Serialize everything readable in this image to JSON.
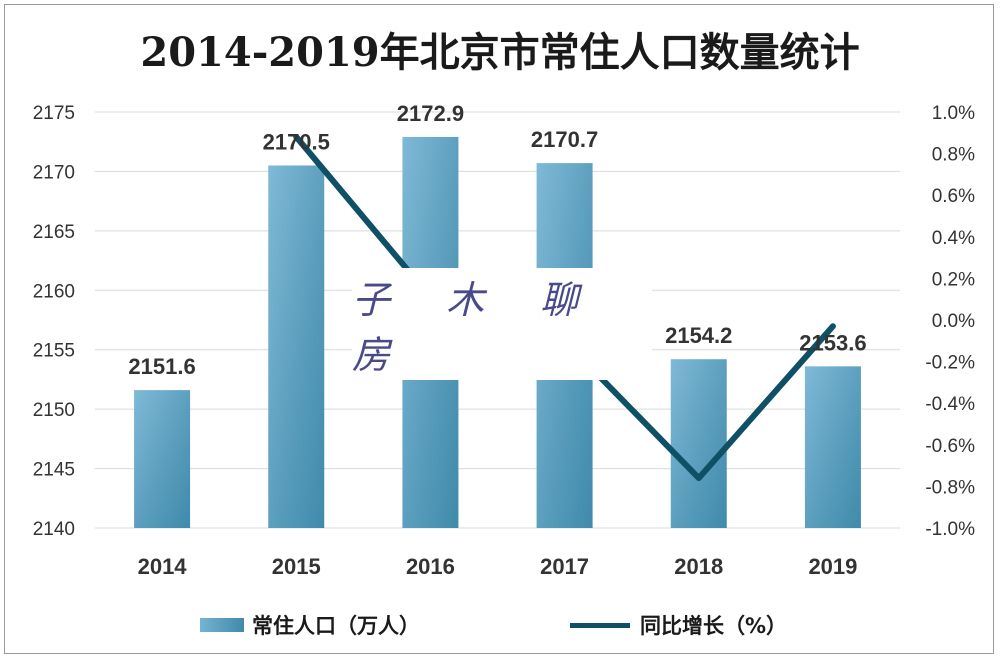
{
  "title": "2014-2019年北京市常住人口数量统计",
  "watermark": "子 木 聊 房",
  "colors": {
    "bar": "#5b9dbd",
    "bar_dark": "#3f8aab",
    "line": "#0e5066",
    "grid": "#d9d9d9"
  },
  "chart_data": {
    "type": "bar+line",
    "categories": [
      "2014",
      "2015",
      "2016",
      "2017",
      "2018",
      "2019"
    ],
    "series": [
      {
        "name": "常住人口（万人）",
        "type": "bar",
        "axis": "left",
        "values": [
          2151.6,
          2170.5,
          2172.9,
          2170.7,
          2154.2,
          2153.6
        ]
      },
      {
        "name": "同比增长（%）",
        "type": "line",
        "axis": "right",
        "values": [
          null,
          0.88,
          0.11,
          -0.1,
          -0.76,
          -0.03
        ]
      }
    ],
    "bar_labels": [
      "2151.6",
      "2170.5",
      "2172.9",
      "2170.7",
      "2154.2",
      "2153.6"
    ],
    "y_left": {
      "min": 2140,
      "max": 2175,
      "ticks": [
        "2140",
        "2145",
        "2150",
        "2155",
        "2160",
        "2165",
        "2170",
        "2175"
      ]
    },
    "y_right": {
      "min": -1.0,
      "max": 1.0,
      "ticks": [
        "-1.0%",
        "-0.8%",
        "-0.6%",
        "-0.4%",
        "-0.2%",
        "0.0%",
        "0.2%",
        "0.4%",
        "0.6%",
        "0.8%",
        "1.0%"
      ]
    },
    "grid": true,
    "legend_position": "bottom",
    "legend": [
      "常住人口（万人）",
      "同比增长（%）"
    ]
  }
}
